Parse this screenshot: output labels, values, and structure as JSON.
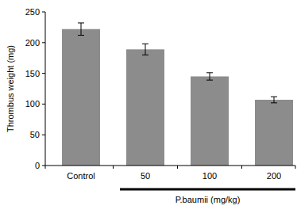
{
  "chart_data": {
    "type": "bar",
    "y_label": "Thrombus weight (mg)",
    "categories": [
      "Control",
      "50",
      "100",
      "200"
    ],
    "values": [
      222,
      189,
      145,
      107
    ],
    "errors": [
      10,
      9,
      6,
      5
    ],
    "annotation": "P.baumii (mg/kg)",
    "color": "#8c8c8c",
    "ylim": [
      0,
      250
    ],
    "yticks": [
      0,
      50,
      100,
      150,
      200,
      250
    ],
    "grid": false
  }
}
